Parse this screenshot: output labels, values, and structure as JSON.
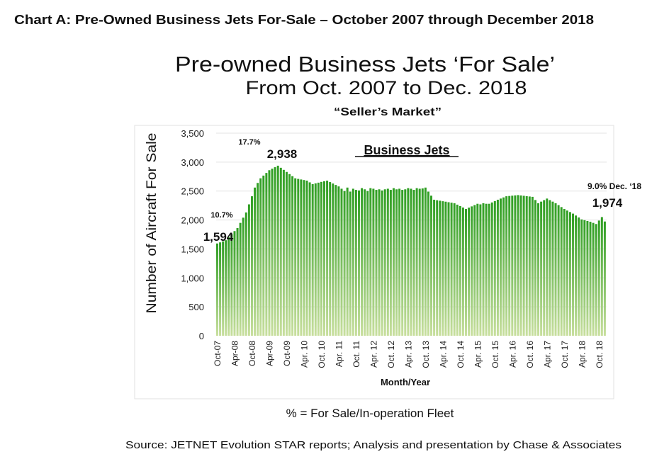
{
  "header": "Chart A: Pre-Owned Business Jets For-Sale – October 2007 through December 2018",
  "footnote": "% = For Sale/In-operation Fleet",
  "source": "Source: JETNET Evolution STAR reports; Analysis and presentation by Chase & Associates",
  "chart_data": {
    "type": "bar",
    "title": "Pre-owned Business Jets ‘For Sale’",
    "subtitle": "From Oct. 2007 to Dec. 2018",
    "subtitle2": "“Seller’s Market”",
    "inner_title": "Business Jets",
    "xlabel": "Month/Year",
    "ylabel": "Number  of Aircraft For Sale",
    "ylim": [
      0,
      3500
    ],
    "yticks": [
      "0",
      "500",
      "1,000",
      "1,500",
      "2,000",
      "2,500",
      "3,000",
      "3,500"
    ],
    "ytick_values": [
      0,
      500,
      1000,
      1500,
      2000,
      2500,
      3000,
      3500
    ],
    "xtick_labels": [
      "Oct-07",
      "Apr-08",
      "Oct-08",
      "Apr-09",
      "Oct-09",
      "Apr. 10",
      "Oct. 10",
      "Apr. 11",
      "Oct. 11",
      "Apr. 12",
      "Oct. 12",
      "Apr. 13",
      "Oct. 13",
      "Apr. 14",
      "Oct. 14",
      "Apr. 15",
      "Oct. 15",
      "Apr. 16",
      "Oct. 16",
      "Apr. 17",
      "Oct. 17",
      "Apr. 18",
      "Oct. 18"
    ],
    "xtick_every_months": 6,
    "start_month": "Oct 2007",
    "end_month": "Dec 2018",
    "grid": true,
    "bar_color_top": "#2e9e22",
    "bar_color_bottom": "#c8df9e",
    "annotations": {
      "start_pct": "10.7%",
      "start_value": "1,594",
      "peak_pct": "17.7%",
      "peak_value": "2,938",
      "end_pct": "9.0% Dec. ‘18",
      "end_value": "1,974"
    },
    "values": [
      1594,
      1613,
      1631,
      1650,
      1703,
      1755,
      1808,
      1860,
      1950,
      2040,
      2130,
      2270,
      2410,
      2560,
      2640,
      2720,
      2767,
      2813,
      2860,
      2886,
      2912,
      2938,
      2902,
      2866,
      2830,
      2793,
      2757,
      2720,
      2710,
      2700,
      2690,
      2680,
      2650,
      2620,
      2633,
      2645,
      2658,
      2670,
      2680,
      2655,
      2630,
      2605,
      2580,
      2540,
      2500,
      2560,
      2490,
      2540,
      2520,
      2510,
      2550,
      2530,
      2500,
      2550,
      2540,
      2520,
      2530,
      2510,
      2530,
      2540,
      2520,
      2550,
      2530,
      2540,
      2520,
      2530,
      2550,
      2540,
      2520,
      2550,
      2540,
      2545,
      2560,
      2490,
      2420,
      2350,
      2341,
      2333,
      2324,
      2316,
      2307,
      2299,
      2290,
      2265,
      2240,
      2215,
      2190,
      2213,
      2235,
      2258,
      2280,
      2270,
      2290,
      2280,
      2280,
      2303,
      2327,
      2350,
      2370,
      2390,
      2410,
      2415,
      2420,
      2425,
      2430,
      2424,
      2418,
      2412,
      2406,
      2400,
      2345,
      2290,
      2317,
      2343,
      2370,
      2343,
      2317,
      2290,
      2257,
      2223,
      2190,
      2163,
      2137,
      2110,
      2077,
      2043,
      2010,
      1997,
      1983,
      1970,
      1950,
      1930,
      1990,
      2050,
      1974
    ]
  }
}
